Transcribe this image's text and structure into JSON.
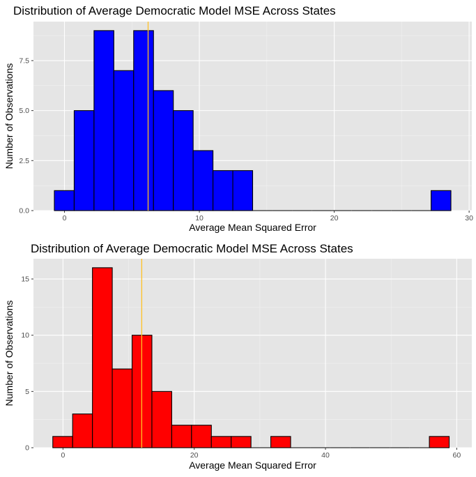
{
  "chart_data": [
    {
      "type": "histogram",
      "title": "Distribution of Average Democratic Model MSE Across States",
      "xlabel": "Average Mean Squared Error",
      "ylabel": "Number of Observations",
      "xlim": [
        -2.3,
        30.2
      ],
      "ylim": [
        0,
        9.45
      ],
      "bin_width": 1.47,
      "bins": [
        {
          "x0": -0.75,
          "x1": 0.72,
          "count": 1
        },
        {
          "x0": 0.72,
          "x1": 2.19,
          "count": 5
        },
        {
          "x0": 2.19,
          "x1": 3.66,
          "count": 9
        },
        {
          "x0": 3.66,
          "x1": 5.13,
          "count": 7
        },
        {
          "x0": 5.13,
          "x1": 6.6,
          "count": 9
        },
        {
          "x0": 6.6,
          "x1": 8.07,
          "count": 6
        },
        {
          "x0": 8.07,
          "x1": 9.54,
          "count": 5
        },
        {
          "x0": 9.54,
          "x1": 11.01,
          "count": 3
        },
        {
          "x0": 11.01,
          "x1": 12.48,
          "count": 2
        },
        {
          "x0": 12.48,
          "x1": 13.95,
          "count": 2
        },
        {
          "x0": 13.95,
          "x1": 15.42,
          "count": 0
        },
        {
          "x0": 15.42,
          "x1": 16.89,
          "count": 0
        },
        {
          "x0": 16.89,
          "x1": 18.36,
          "count": 0
        },
        {
          "x0": 18.36,
          "x1": 19.83,
          "count": 0
        },
        {
          "x0": 19.83,
          "x1": 21.3,
          "count": 0
        },
        {
          "x0": 21.3,
          "x1": 22.77,
          "count": 0
        },
        {
          "x0": 22.77,
          "x1": 24.24,
          "count": 0
        },
        {
          "x0": 24.24,
          "x1": 25.71,
          "count": 0
        },
        {
          "x0": 25.71,
          "x1": 27.18,
          "count": 0
        },
        {
          "x0": 27.18,
          "x1": 28.65,
          "count": 1
        }
      ],
      "mean_line": 6.2,
      "fill_color": "#0000ff",
      "mean_line_color": "#ffc125",
      "x_ticks": [
        0,
        10,
        20,
        30
      ],
      "x_tick_labels": [
        "0",
        "10",
        "20",
        "30"
      ],
      "y_ticks": [
        0,
        2.5,
        5,
        7.5
      ],
      "y_tick_labels": [
        "0.0",
        "2.5",
        "5.0",
        "7.5"
      ],
      "grid": true,
      "panel_background": "#e5e5e5"
    },
    {
      "type": "histogram",
      "title": "Distribution of Average Democratic Model MSE Across States",
      "xlabel": "Average Mean Squared Error",
      "ylabel": "Number of Observations",
      "xlim": [
        -4.5,
        62.3
      ],
      "ylim": [
        0,
        16.8
      ],
      "bin_width": 3.02,
      "bins": [
        {
          "x0": -1.55,
          "x1": 1.47,
          "count": 1
        },
        {
          "x0": 1.47,
          "x1": 4.49,
          "count": 3
        },
        {
          "x0": 4.49,
          "x1": 7.51,
          "count": 16
        },
        {
          "x0": 7.51,
          "x1": 10.53,
          "count": 7
        },
        {
          "x0": 10.53,
          "x1": 13.55,
          "count": 10
        },
        {
          "x0": 13.55,
          "x1": 16.57,
          "count": 5
        },
        {
          "x0": 16.57,
          "x1": 19.59,
          "count": 2
        },
        {
          "x0": 19.59,
          "x1": 22.61,
          "count": 2
        },
        {
          "x0": 22.61,
          "x1": 25.63,
          "count": 1
        },
        {
          "x0": 25.63,
          "x1": 28.65,
          "count": 1
        },
        {
          "x0": 28.65,
          "x1": 31.67,
          "count": 0
        },
        {
          "x0": 31.67,
          "x1": 34.69,
          "count": 1
        },
        {
          "x0": 34.69,
          "x1": 37.71,
          "count": 0
        },
        {
          "x0": 37.71,
          "x1": 40.73,
          "count": 0
        },
        {
          "x0": 40.73,
          "x1": 43.75,
          "count": 0
        },
        {
          "x0": 43.75,
          "x1": 46.77,
          "count": 0
        },
        {
          "x0": 46.77,
          "x1": 49.79,
          "count": 0
        },
        {
          "x0": 49.79,
          "x1": 52.81,
          "count": 0
        },
        {
          "x0": 52.81,
          "x1": 55.83,
          "count": 0
        },
        {
          "x0": 55.83,
          "x1": 58.85,
          "count": 1
        }
      ],
      "mean_line": 12.0,
      "fill_color": "#ff0000",
      "mean_line_color": "#ffc125",
      "x_ticks": [
        0,
        20,
        40,
        60
      ],
      "x_tick_labels": [
        "0",
        "20",
        "40",
        "60"
      ],
      "y_ticks": [
        0,
        5,
        10,
        15
      ],
      "y_tick_labels": [
        "0",
        "5",
        "10",
        "15"
      ],
      "grid": true,
      "panel_background": "#e5e5e5"
    }
  ]
}
